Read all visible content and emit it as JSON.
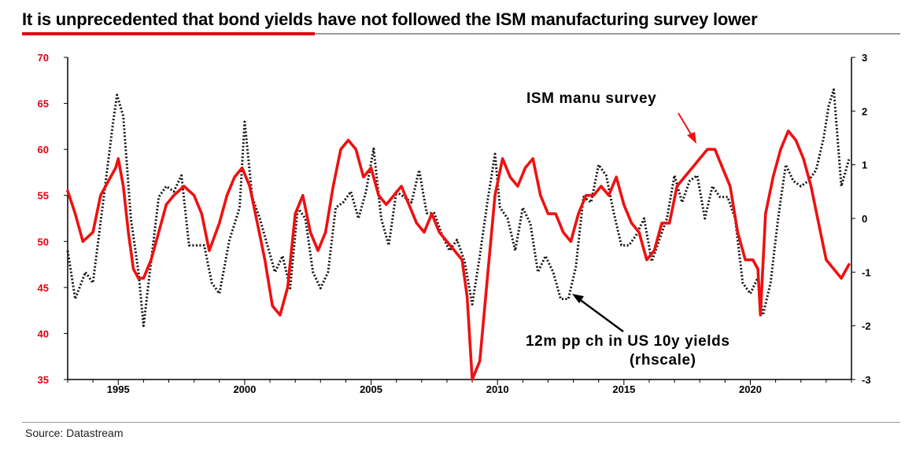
{
  "title": "It is unprecedented that bond yields have not followed the ISM manufacturing survey lower",
  "source": "Source: Datastream",
  "colors": {
    "ism": "#ee1111",
    "yields": "#111111",
    "left_axis": "#e3000f",
    "right_axis": "#000000"
  },
  "chart_data": {
    "type": "line",
    "title": "It is unprecedented that bond yields have not followed the ISM manufacturing survey lower",
    "xlabel": "",
    "ylabel_left": "",
    "ylabel_right": "",
    "xlim": [
      1993,
      2024
    ],
    "x_ticks": [
      1995,
      2000,
      2005,
      2010,
      2015,
      2020
    ],
    "y_left": {
      "range": [
        35,
        70
      ],
      "ticks": [
        35,
        40,
        45,
        50,
        55,
        60,
        65,
        70
      ]
    },
    "y_right": {
      "range": [
        -3,
        3
      ],
      "ticks": [
        -3,
        -2,
        -1,
        0,
        1,
        2,
        3
      ]
    },
    "grid": false,
    "annotations": [
      {
        "text": "ISM manu survey",
        "points_to_series": "ism"
      },
      {
        "text": "12m pp ch in US 10y yields",
        "text2": "(rhscale)",
        "points_to_series": "yields"
      }
    ],
    "series": [
      {
        "key": "ism",
        "axis": "left",
        "style": "solid",
        "x": [
          1993.0,
          1993.3,
          1993.6,
          1994.0,
          1994.3,
          1994.7,
          1994.9,
          1995.0,
          1995.2,
          1995.4,
          1995.6,
          1995.8,
          1996.0,
          1996.3,
          1996.6,
          1996.9,
          1997.2,
          1997.6,
          1998.0,
          1998.3,
          1998.6,
          1999.0,
          1999.3,
          1999.6,
          1999.9,
          2000.2,
          2000.5,
          2000.8,
          2001.1,
          2001.4,
          2001.7,
          2002.0,
          2002.3,
          2002.6,
          2002.9,
          2003.2,
          2003.5,
          2003.8,
          2004.1,
          2004.4,
          2004.7,
          2005.0,
          2005.3,
          2005.6,
          2005.9,
          2006.2,
          2006.5,
          2006.8,
          2007.1,
          2007.4,
          2007.7,
          2008.0,
          2008.3,
          2008.6,
          2008.8,
          2009.0,
          2009.3,
          2009.6,
          2009.9,
          2010.2,
          2010.5,
          2010.8,
          2011.1,
          2011.4,
          2011.7,
          2012.0,
          2012.3,
          2012.6,
          2012.9,
          2013.2,
          2013.5,
          2013.8,
          2014.1,
          2014.4,
          2014.7,
          2015.0,
          2015.3,
          2015.6,
          2015.9,
          2016.2,
          2016.5,
          2016.8,
          2017.1,
          2017.4,
          2017.7,
          2018.0,
          2018.3,
          2018.6,
          2018.9,
          2019.2,
          2019.5,
          2019.8,
          2020.1,
          2020.3,
          2020.4,
          2020.6,
          2020.9,
          2021.2,
          2021.5,
          2021.8,
          2022.1,
          2022.4,
          2022.7,
          2023.0,
          2023.3,
          2023.6,
          2023.9
        ],
        "y": [
          55.5,
          53,
          50,
          51,
          55,
          57,
          58,
          59,
          56,
          51,
          47,
          46,
          46,
          48,
          51,
          54,
          55,
          56,
          55,
          53,
          49,
          52,
          55,
          57,
          58,
          56,
          52,
          48,
          43,
          42,
          45,
          53,
          55,
          51,
          49,
          51,
          56,
          60,
          61,
          60,
          57,
          58,
          55,
          54,
          55,
          56,
          54,
          52,
          51,
          53,
          51,
          50,
          49,
          48,
          44,
          35,
          37,
          46,
          55,
          59,
          57,
          56,
          58,
          59,
          55,
          53,
          53,
          51,
          50,
          53,
          55,
          55,
          56,
          55,
          57,
          54,
          52,
          51,
          48,
          49,
          52,
          52,
          56,
          57,
          58,
          59,
          60,
          60,
          58,
          56,
          51,
          48,
          48,
          47,
          42,
          53,
          57,
          60,
          62,
          61,
          59,
          56,
          52,
          48,
          47,
          46,
          47.5
        ]
      },
      {
        "key": "yields",
        "axis": "right",
        "style": "dotted",
        "x": [
          1993.0,
          1993.3,
          1993.7,
          1994.0,
          1994.4,
          1994.8,
          1994.95,
          1995.2,
          1995.5,
          1995.8,
          1996.0,
          1996.3,
          1996.6,
          1996.9,
          1997.2,
          1997.5,
          1997.8,
          1998.1,
          1998.4,
          1998.7,
          1999.0,
          1999.4,
          1999.8,
          2000.0,
          2000.3,
          2000.6,
          2000.9,
          2001.2,
          2001.5,
          2001.8,
          2002.1,
          2002.4,
          2002.7,
          2003.0,
          2003.3,
          2003.6,
          2003.9,
          2004.2,
          2004.5,
          2004.8,
          2005.1,
          2005.4,
          2005.7,
          2006.0,
          2006.3,
          2006.6,
          2006.9,
          2007.2,
          2007.5,
          2007.8,
          2008.1,
          2008.4,
          2008.7,
          2009.0,
          2009.3,
          2009.6,
          2009.9,
          2010.1,
          2010.4,
          2010.7,
          2011.0,
          2011.3,
          2011.6,
          2011.9,
          2012.2,
          2012.5,
          2012.8,
          2013.1,
          2013.4,
          2013.7,
          2014.0,
          2014.3,
          2014.6,
          2014.9,
          2015.2,
          2015.5,
          2015.8,
          2016.1,
          2016.4,
          2016.7,
          2017.0,
          2017.3,
          2017.6,
          2017.9,
          2018.2,
          2018.5,
          2018.8,
          2019.1,
          2019.4,
          2019.7,
          2020.0,
          2020.3,
          2020.5,
          2020.8,
          2021.1,
          2021.4,
          2021.7,
          2022.0,
          2022.3,
          2022.6,
          2022.9,
          2023.1,
          2023.3,
          2023.6,
          2023.9
        ],
        "y": [
          -0.6,
          -1.5,
          -1.0,
          -1.2,
          0.3,
          1.8,
          2.3,
          1.9,
          0.0,
          -1.0,
          -2.0,
          -0.8,
          0.4,
          0.6,
          0.5,
          0.8,
          -0.5,
          -0.5,
          -0.5,
          -1.2,
          -1.4,
          -0.4,
          0.2,
          1.8,
          0.4,
          0.0,
          -0.5,
          -1.0,
          -0.7,
          -1.3,
          0.2,
          0.0,
          -1.0,
          -1.3,
          -1.0,
          0.2,
          0.3,
          0.5,
          0.0,
          0.5,
          1.3,
          0.0,
          -0.5,
          0.5,
          0.4,
          0.3,
          0.9,
          0.1,
          0.1,
          -0.3,
          -0.6,
          -0.4,
          -0.8,
          -1.6,
          -0.7,
          0.3,
          1.2,
          0.2,
          0.0,
          -0.6,
          0.2,
          -0.1,
          -1.0,
          -0.7,
          -1.0,
          -1.5,
          -1.5,
          -0.9,
          0.4,
          0.3,
          1.0,
          0.8,
          0.1,
          -0.5,
          -0.5,
          -0.3,
          0.0,
          -0.8,
          -0.4,
          0.0,
          0.8,
          0.3,
          0.7,
          0.8,
          0.0,
          0.6,
          0.4,
          0.4,
          0.0,
          -1.2,
          -1.4,
          -1.1,
          -1.8,
          -1.2,
          0.0,
          1.0,
          0.7,
          0.6,
          0.7,
          0.9,
          1.5,
          2.1,
          2.4,
          0.6,
          1.1
        ]
      }
    ]
  }
}
